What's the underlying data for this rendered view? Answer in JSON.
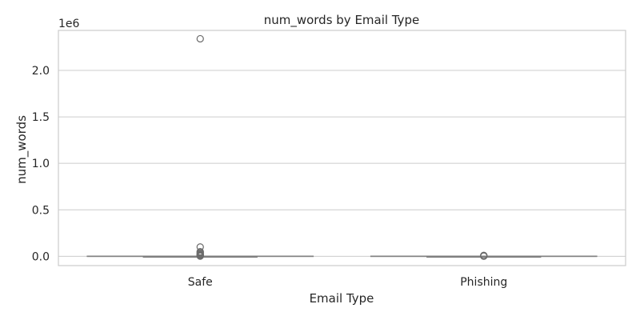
{
  "chart_data": {
    "type": "box",
    "title": "num_words by Email Type",
    "xlabel": "Email Type",
    "ylabel": "num_words",
    "y_offset_label": "1e6",
    "ylim": [
      -100000,
      2430000
    ],
    "yticks": [
      0,
      500000,
      1000000,
      1500000,
      2000000
    ],
    "ytick_labels": [
      "0.0",
      "0.5",
      "1.0",
      "1.5",
      "2.0"
    ],
    "grid": true,
    "categories": [
      "Safe",
      "Phishing"
    ],
    "boxes": [
      {
        "category": "Safe",
        "q1": 0,
        "median": 0,
        "q3": 0,
        "whisker_low": 0,
        "whisker_high": 0,
        "outliers": [
          2340000,
          100000,
          50000,
          40000,
          30000,
          20000,
          15000,
          10000,
          5000,
          2000
        ]
      },
      {
        "category": "Phishing",
        "q1": 0,
        "median": 0,
        "q3": 0,
        "whisker_low": 0,
        "whisker_high": 0,
        "outliers": [
          10000,
          6000,
          3000,
          1500
        ]
      }
    ],
    "colors": {
      "grid": "#cccccc",
      "frame": "#cccccc",
      "box": "#808080",
      "outlier_stroke": "#6b6b6b"
    }
  }
}
